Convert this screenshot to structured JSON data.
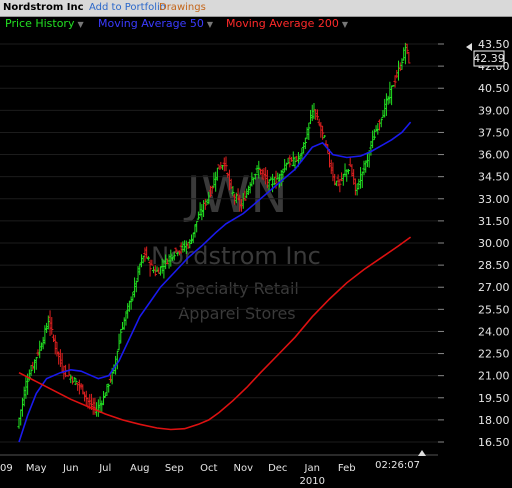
{
  "toolbar": {
    "company": "Nordstrom Inc",
    "add_portfolio": "Add to Portfolio",
    "drawings": "Drawings"
  },
  "legend": {
    "price": "Price History",
    "ma50": "Moving Average 50",
    "ma200": "Moving Average 200"
  },
  "watermark": {
    "ticker": "JWN",
    "name": "Nordstrom Inc",
    "sector": "Specialty Retail",
    "industry": "Apparel Stores"
  },
  "time_label": "02:26:07",
  "colors": {
    "up": "#22e022",
    "down": "#e02020",
    "ma50": "#1a1aee",
    "ma200": "#dd1111"
  },
  "chart_data": {
    "type": "line",
    "title": "",
    "ylim": [
      16.0,
      44.0
    ],
    "y_ticks": [
      16.5,
      18.0,
      19.5,
      21.0,
      22.5,
      24.0,
      25.5,
      27.0,
      28.5,
      30.0,
      31.5,
      33.0,
      34.5,
      36.0,
      37.5,
      39.0,
      40.5,
      42.0,
      43.5
    ],
    "x_ticks": [
      {
        "label": "09",
        "t": 0.0
      },
      {
        "label": "May",
        "t": 0.5
      },
      {
        "label": "Jun",
        "t": 1.5
      },
      {
        "label": "Jul",
        "t": 2.5
      },
      {
        "label": "Aug",
        "t": 3.5
      },
      {
        "label": "Sep",
        "t": 4.5
      },
      {
        "label": "Oct",
        "t": 5.5
      },
      {
        "label": "Nov",
        "t": 6.5
      },
      {
        "label": "Dec",
        "t": 7.5
      },
      {
        "label": "Jan",
        "t": 8.5
      },
      {
        "label": "Feb",
        "t": 9.5
      }
    ],
    "year_label": {
      "label": "2010",
      "t": 8.5
    },
    "last_price": 42.39,
    "price_points": [
      [
        0.0,
        17.5
      ],
      [
        0.25,
        20.5
      ],
      [
        0.5,
        22.0
      ],
      [
        0.75,
        23.5
      ],
      [
        0.9,
        24.8
      ],
      [
        1.1,
        23.0
      ],
      [
        1.3,
        21.5
      ],
      [
        1.6,
        20.8
      ],
      [
        1.9,
        20.0
      ],
      [
        2.1,
        19.0
      ],
      [
        2.3,
        18.7
      ],
      [
        2.5,
        19.5
      ],
      [
        2.8,
        21.5
      ],
      [
        3.0,
        24.0
      ],
      [
        3.2,
        25.5
      ],
      [
        3.4,
        27.0
      ],
      [
        3.55,
        28.5
      ],
      [
        3.7,
        29.3
      ],
      [
        3.85,
        28.5
      ],
      [
        4.0,
        28.0
      ],
      [
        4.15,
        28.3
      ],
      [
        4.4,
        29.0
      ],
      [
        4.6,
        29.5
      ],
      [
        4.8,
        29.7
      ],
      [
        5.0,
        30.0
      ],
      [
        5.2,
        31.5
      ],
      [
        5.4,
        32.5
      ],
      [
        5.6,
        33.5
      ],
      [
        5.8,
        35.0
      ],
      [
        6.0,
        35.5
      ],
      [
        6.2,
        33.5
      ],
      [
        6.5,
        32.5
      ],
      [
        6.8,
        34.5
      ],
      [
        7.0,
        35.0
      ],
      [
        7.3,
        34.0
      ],
      [
        7.6,
        34.5
      ],
      [
        7.8,
        35.5
      ],
      [
        8.0,
        35.5
      ],
      [
        8.2,
        35.8
      ],
      [
        8.4,
        37.5
      ],
      [
        8.5,
        38.5
      ],
      [
        8.6,
        39.0
      ],
      [
        8.75,
        38.0
      ],
      [
        8.9,
        37.0
      ],
      [
        9.05,
        35.5
      ],
      [
        9.2,
        34.2
      ],
      [
        9.35,
        34.0
      ],
      [
        9.5,
        34.8
      ],
      [
        9.65,
        35.2
      ],
      [
        9.8,
        33.5
      ],
      [
        9.95,
        34.5
      ],
      [
        10.1,
        35.5
      ],
      [
        10.3,
        37.0
      ],
      [
        10.5,
        38.3
      ],
      [
        10.7,
        39.5
      ],
      [
        10.9,
        40.8
      ],
      [
        11.1,
        42.0
      ],
      [
        11.25,
        43.3
      ],
      [
        11.35,
        42.4
      ]
    ],
    "series": [
      {
        "name": "Moving Average 50",
        "points": [
          [
            0.0,
            16.5
          ],
          [
            0.25,
            18.3
          ],
          [
            0.5,
            19.8
          ],
          [
            0.8,
            20.8
          ],
          [
            1.2,
            21.2
          ],
          [
            1.5,
            21.4
          ],
          [
            1.8,
            21.3
          ],
          [
            2.1,
            21.0
          ],
          [
            2.3,
            20.8
          ],
          [
            2.6,
            21.0
          ],
          [
            2.9,
            22.0
          ],
          [
            3.2,
            23.5
          ],
          [
            3.5,
            25.0
          ],
          [
            3.8,
            26.0
          ],
          [
            4.1,
            27.0
          ],
          [
            4.5,
            28.0
          ],
          [
            4.9,
            29.0
          ],
          [
            5.3,
            29.8
          ],
          [
            5.7,
            30.7
          ],
          [
            6.0,
            31.3
          ],
          [
            6.5,
            32.0
          ],
          [
            7.0,
            33.0
          ],
          [
            7.5,
            34.0
          ],
          [
            8.0,
            35.0
          ],
          [
            8.5,
            36.5
          ],
          [
            8.8,
            36.8
          ],
          [
            9.1,
            36.0
          ],
          [
            9.5,
            35.8
          ],
          [
            9.9,
            35.9
          ],
          [
            10.2,
            36.2
          ],
          [
            10.5,
            36.6
          ],
          [
            10.8,
            37.0
          ],
          [
            11.1,
            37.5
          ],
          [
            11.35,
            38.2
          ]
        ]
      },
      {
        "name": "Moving Average 200",
        "points": [
          [
            0.0,
            21.2
          ],
          [
            0.5,
            20.6
          ],
          [
            1.0,
            20.0
          ],
          [
            1.5,
            19.4
          ],
          [
            2.0,
            18.9
          ],
          [
            2.5,
            18.4
          ],
          [
            3.0,
            18.0
          ],
          [
            3.5,
            17.7
          ],
          [
            4.0,
            17.45
          ],
          [
            4.4,
            17.35
          ],
          [
            4.8,
            17.4
          ],
          [
            5.2,
            17.7
          ],
          [
            5.5,
            18.0
          ],
          [
            5.8,
            18.5
          ],
          [
            6.2,
            19.3
          ],
          [
            6.6,
            20.2
          ],
          [
            7.0,
            21.2
          ],
          [
            7.5,
            22.4
          ],
          [
            8.0,
            23.6
          ],
          [
            8.5,
            25.0
          ],
          [
            9.0,
            26.2
          ],
          [
            9.5,
            27.3
          ],
          [
            10.0,
            28.2
          ],
          [
            10.5,
            29.0
          ],
          [
            11.0,
            29.8
          ],
          [
            11.35,
            30.4
          ]
        ]
      }
    ]
  }
}
